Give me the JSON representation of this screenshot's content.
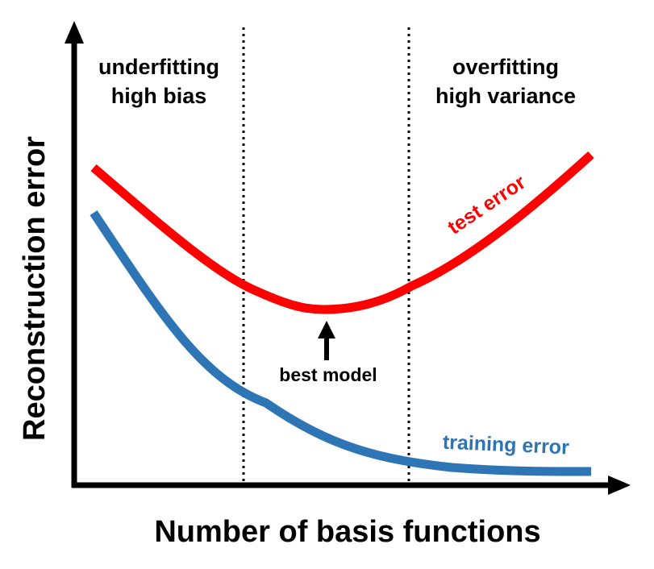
{
  "chart_data": {
    "type": "line",
    "title": "",
    "xlabel": "Number of basis functions",
    "ylabel": "Reconstruction error",
    "x_ticks": false,
    "y_ticks": false,
    "grid": false,
    "legend": "none",
    "regions": [
      {
        "line1": "underfitting",
        "line2": "high bias"
      },
      {
        "line1": "overfitting",
        "line2": "high variance"
      }
    ],
    "series": [
      {
        "name": "test error",
        "color": "#ff0000"
      },
      {
        "name": "training error",
        "color": "#2e75b6"
      }
    ],
    "annotation": {
      "text": "best model",
      "color": "#000000"
    }
  }
}
